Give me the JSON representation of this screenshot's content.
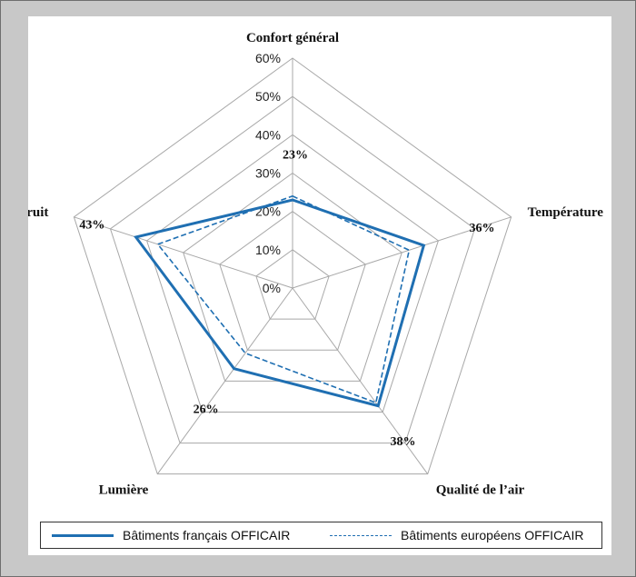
{
  "chart_data": {
    "type": "radar",
    "axes": [
      "Confort général",
      "Température",
      "Qualité de l’air",
      "Lumière",
      "Bruit"
    ],
    "tick_labels": [
      "0%",
      "10%",
      "20%",
      "30%",
      "40%",
      "50%",
      "60%"
    ],
    "range": [
      0,
      60
    ],
    "grid": true,
    "legend_position": "bottom",
    "series": [
      {
        "name": "Bâtiments français OFFICAIR",
        "values": [
          23,
          36,
          38,
          26,
          43
        ],
        "color": "#1f6fb2",
        "style": "solid"
      },
      {
        "name": "Bâtiments européens OFFICAIR",
        "values": [
          24,
          32,
          37,
          21,
          37
        ],
        "color": "#1f6fb2",
        "style": "dashed"
      }
    ],
    "data_labels": [
      "23%",
      "36%",
      "38%",
      "26%",
      "43%"
    ]
  }
}
